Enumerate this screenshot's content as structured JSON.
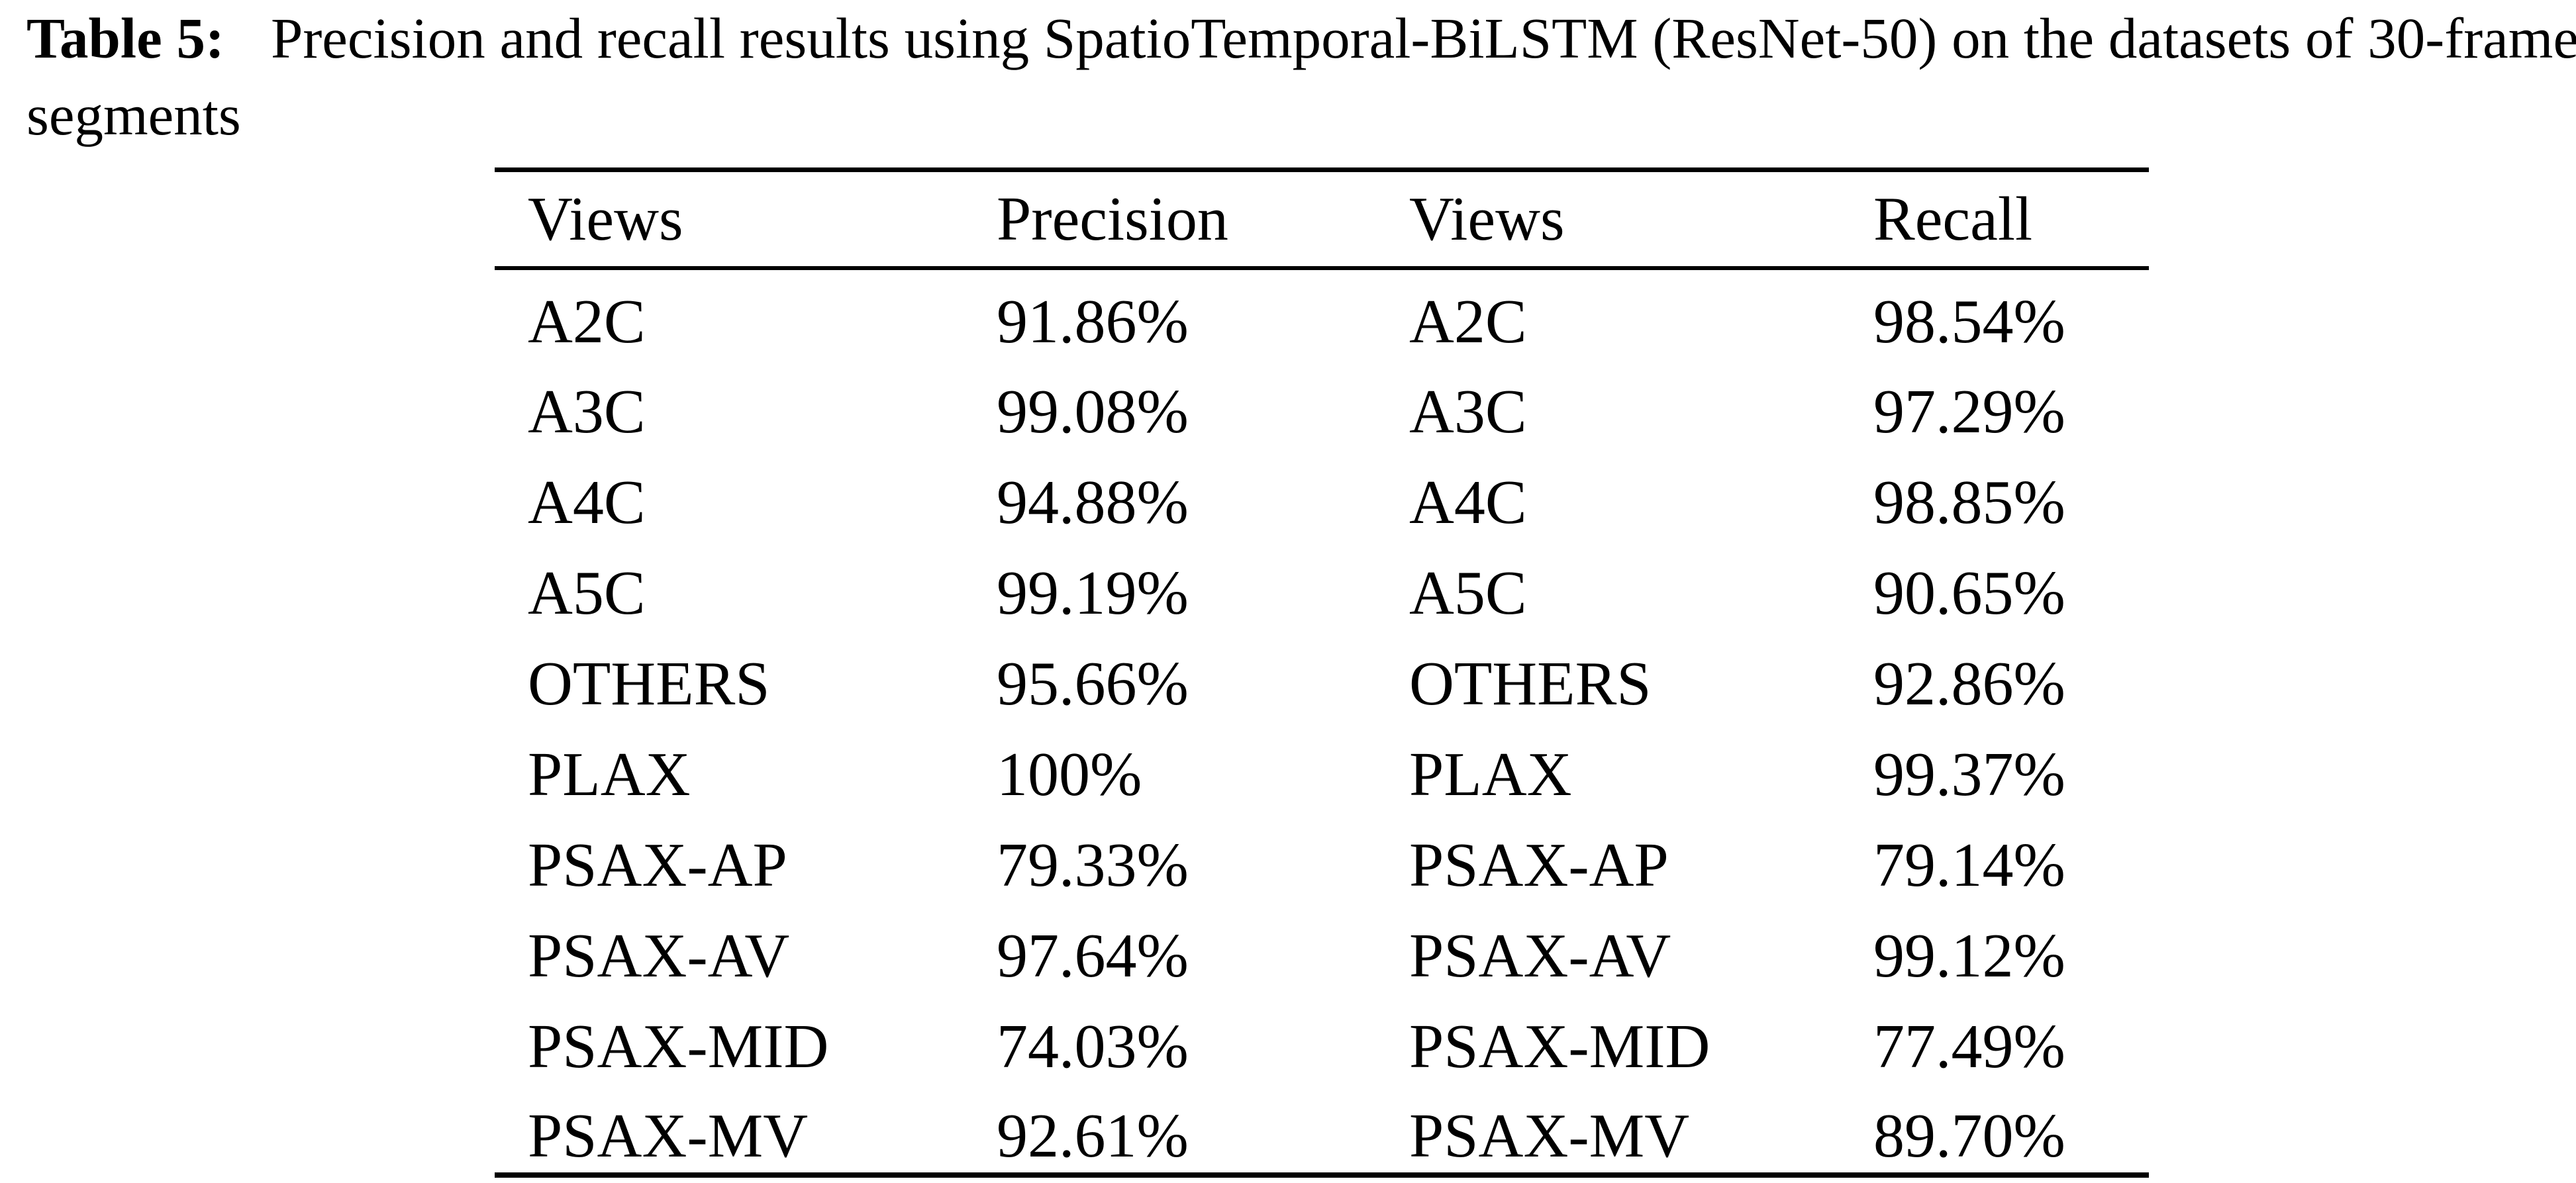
{
  "caption": {
    "label": "Table 5:",
    "line1": "Precision and recall results using SpatioTemporal-BiLSTM (ResNet-50) on the datasets of 30-frame",
    "line2": "segments"
  },
  "table": {
    "headers": [
      "Views",
      "Precision",
      "Views",
      "Recall"
    ],
    "rows": [
      [
        "A2C",
        "91.86%",
        "A2C",
        "98.54%"
      ],
      [
        "A3C",
        "99.08%",
        "A3C",
        "97.29%"
      ],
      [
        "A4C",
        "94.88%",
        "A4C",
        "98.85%"
      ],
      [
        "A5C",
        "99.19%",
        "A5C",
        "90.65%"
      ],
      [
        "OTHERS",
        "95.66%",
        "OTHERS",
        "92.86%"
      ],
      [
        "PLAX",
        "100%",
        "PLAX",
        "99.37%"
      ],
      [
        "PSAX-AP",
        "79.33%",
        "PSAX-AP",
        "79.14%"
      ],
      [
        "PSAX-AV",
        "97.64%",
        "PSAX-AV",
        "99.12%"
      ],
      [
        "PSAX-MID",
        "74.03%",
        "PSAX-MID",
        "77.49%"
      ],
      [
        "PSAX-MV",
        "92.61%",
        "PSAX-MV",
        "89.70%"
      ]
    ]
  },
  "colors": {
    "text": "#000000",
    "background": "#ffffff",
    "rule": "#000000"
  }
}
